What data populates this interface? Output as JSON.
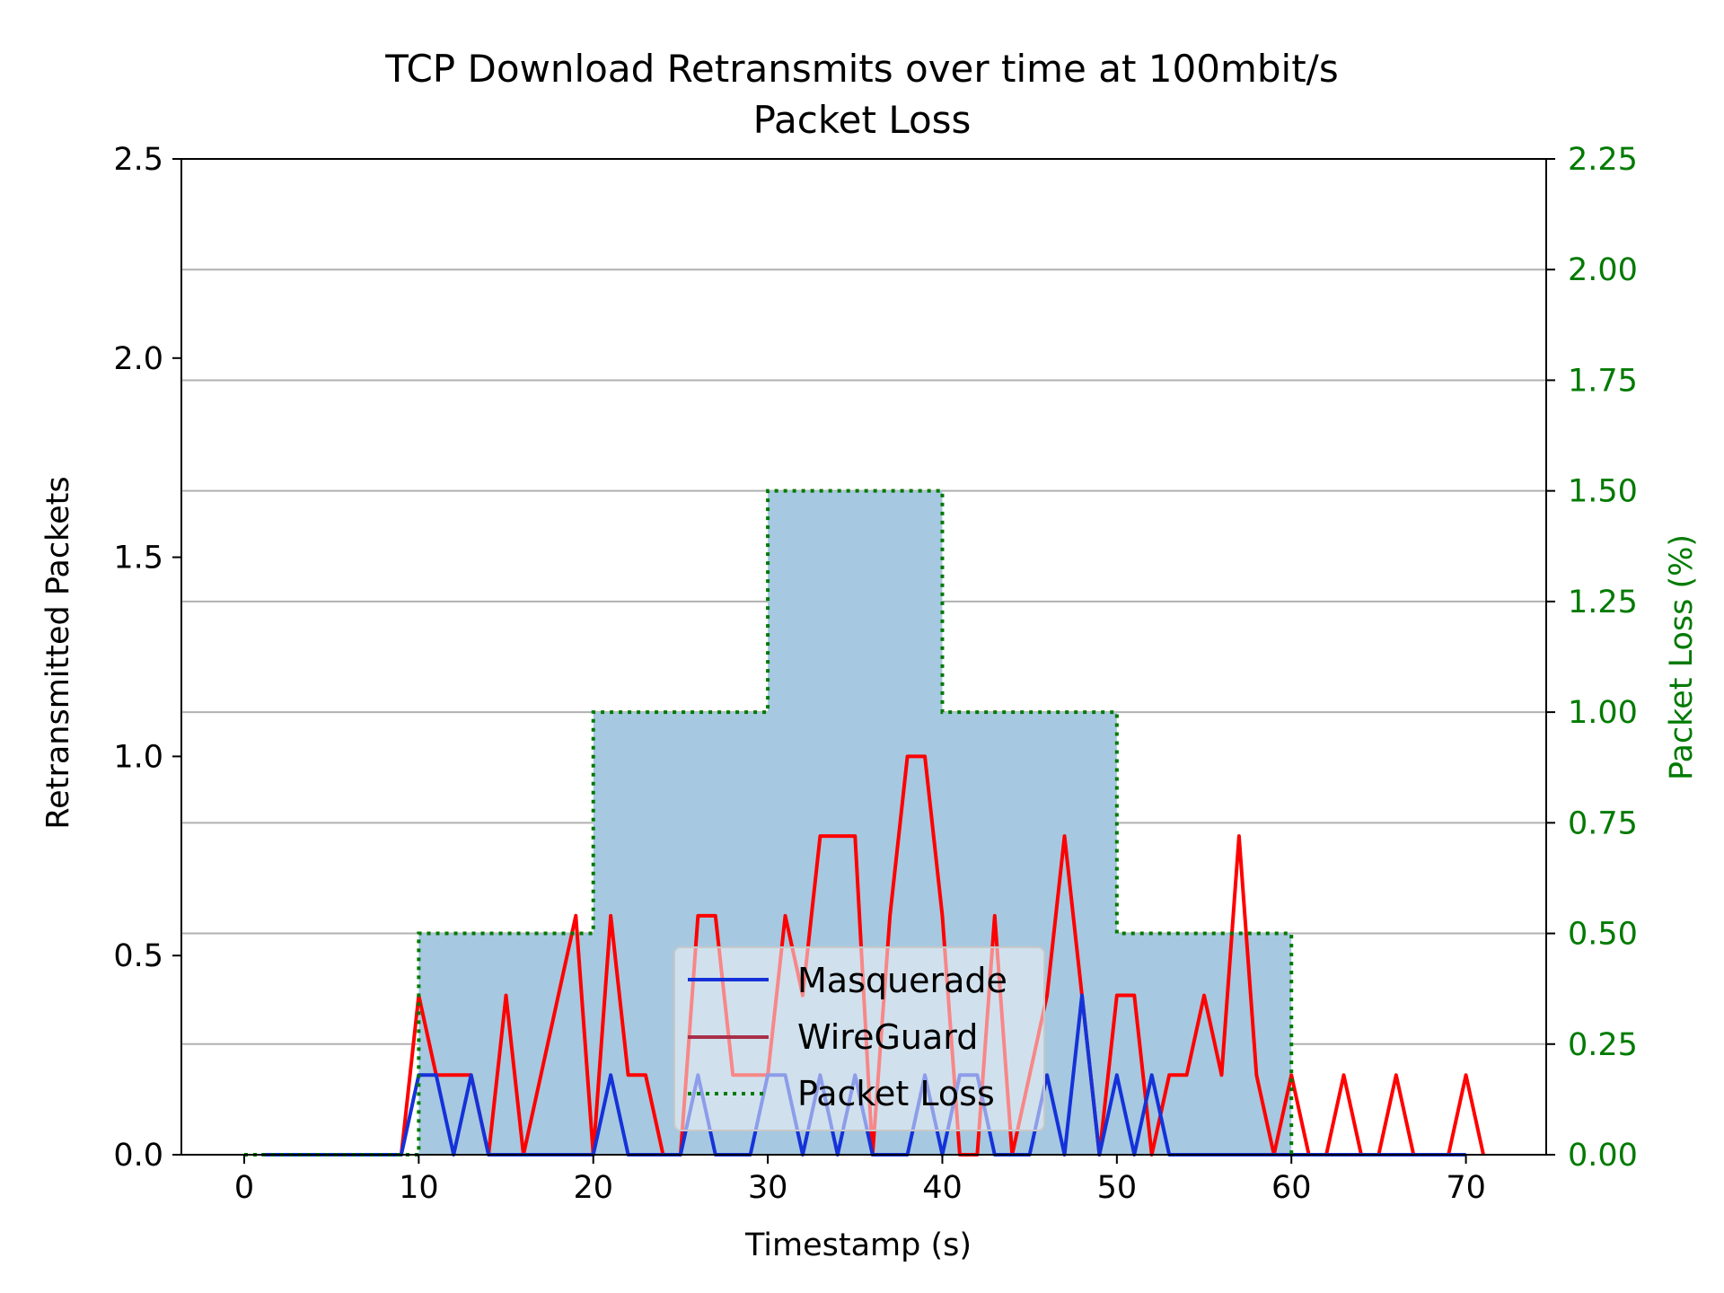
{
  "chart_data": {
    "type": "line",
    "title": "TCP Download Retransmits over time at 100mbit/s",
    "subtitle": "Packet Loss",
    "xlabel": "Timestamp (s)",
    "ylabel": "Retransmitted Packets",
    "y2label": "Packet Loss (%)",
    "xlim": [
      -3.6,
      74.6
    ],
    "ylim": [
      0,
      2.5
    ],
    "y2lim": [
      0,
      2.25
    ],
    "xticks": [
      0,
      10,
      20,
      30,
      40,
      50,
      60,
      70
    ],
    "yticks": [
      0.0,
      0.5,
      1.0,
      1.5,
      2.0,
      2.5
    ],
    "y2ticks": [
      0.0,
      0.25,
      0.5,
      0.75,
      1.0,
      1.25,
      1.5,
      1.75,
      2.0,
      2.25
    ],
    "ytick_labels": [
      "0.0",
      "0.5",
      "1.0",
      "1.5",
      "2.0",
      "2.5"
    ],
    "y2tick_labels": [
      "0.00",
      "0.25",
      "0.50",
      "0.75",
      "1.00",
      "1.25",
      "1.50",
      "1.75",
      "2.00",
      "2.25"
    ],
    "grid": "horizontal (secondary axis)",
    "legend_position": "lower-center",
    "colors": {
      "masquerade": "#1432d8",
      "wireguard_outside_loss": "#ff0000",
      "wireguard_inside_loss": "#a8304a",
      "packet_loss_line": "#007a00",
      "packet_loss_fill": "#a6c8e0",
      "secondary_axis": "#007a00"
    },
    "series": [
      {
        "name": "Masquerade",
        "axis": "left",
        "x": [
          1,
          2,
          3,
          4,
          5,
          6,
          7,
          8,
          9,
          10,
          11,
          12,
          13,
          14,
          15,
          16,
          17,
          18,
          19,
          20,
          21,
          22,
          23,
          24,
          25,
          26,
          27,
          28,
          29,
          30,
          31,
          32,
          33,
          34,
          35,
          36,
          37,
          38,
          39,
          40,
          41,
          42,
          43,
          44,
          45,
          46,
          47,
          48,
          49,
          50,
          51,
          52,
          53,
          54,
          55,
          56,
          57,
          58,
          59,
          60,
          61,
          62,
          63,
          64,
          65,
          66,
          67,
          68,
          69,
          70
        ],
        "values": [
          0,
          0,
          0,
          0,
          0,
          0,
          0,
          0,
          0,
          0.2,
          0.2,
          0,
          0.2,
          0,
          0,
          0,
          0,
          0,
          0,
          0,
          0.2,
          0,
          0,
          0,
          0,
          0.2,
          0,
          0,
          0,
          0.2,
          0.2,
          0,
          0.2,
          0,
          0.2,
          0,
          0,
          0,
          0.2,
          0,
          0.2,
          0.2,
          0,
          0,
          0,
          0.2,
          0,
          0.4,
          0,
          0.2,
          0,
          0.2,
          0,
          0,
          0,
          0,
          0,
          0,
          0,
          0,
          0,
          0,
          0,
          0,
          0,
          0,
          0,
          0,
          0,
          0
        ]
      },
      {
        "name": "WireGuard",
        "axis": "left",
        "x": [
          1,
          2,
          3,
          4,
          5,
          6,
          7,
          8,
          9,
          10,
          11,
          12,
          13,
          14,
          15,
          16,
          17,
          18,
          19,
          20,
          21,
          22,
          23,
          24,
          25,
          26,
          27,
          28,
          29,
          30,
          31,
          32,
          33,
          34,
          35,
          36,
          37,
          38,
          39,
          40,
          41,
          42,
          43,
          44,
          45,
          46,
          47,
          48,
          49,
          50,
          51,
          52,
          53,
          54,
          55,
          56,
          57,
          58,
          59,
          60,
          61,
          62,
          63,
          64,
          65,
          66,
          67,
          68,
          69,
          70,
          71
        ],
        "values": [
          0,
          0,
          0,
          0,
          0,
          0,
          0,
          0,
          0,
          0.4,
          0.2,
          0.2,
          0.2,
          0,
          0.4,
          0,
          0.2,
          0.4,
          0.6,
          0,
          0.6,
          0.2,
          0.2,
          0,
          0,
          0.6,
          0.6,
          0.2,
          0.2,
          0.2,
          0.6,
          0.4,
          0.8,
          0.8,
          0.8,
          0,
          0.6,
          1.0,
          1.0,
          0.6,
          0,
          0,
          0.6,
          0,
          0.2,
          0.4,
          0.8,
          0.4,
          0,
          0.4,
          0.4,
          0,
          0.2,
          0.2,
          0.4,
          0.2,
          0.8,
          0.2,
          0,
          0.2,
          0,
          0,
          0.2,
          0,
          0,
          0.2,
          0,
          0,
          0,
          0.2,
          0
        ]
      },
      {
        "name": "Packet Loss",
        "axis": "right",
        "step": "post",
        "x": [
          0,
          10,
          20,
          30,
          40,
          50,
          60
        ],
        "values": [
          0,
          0.5,
          1.0,
          1.5,
          1.0,
          0.5,
          0
        ]
      }
    ]
  }
}
